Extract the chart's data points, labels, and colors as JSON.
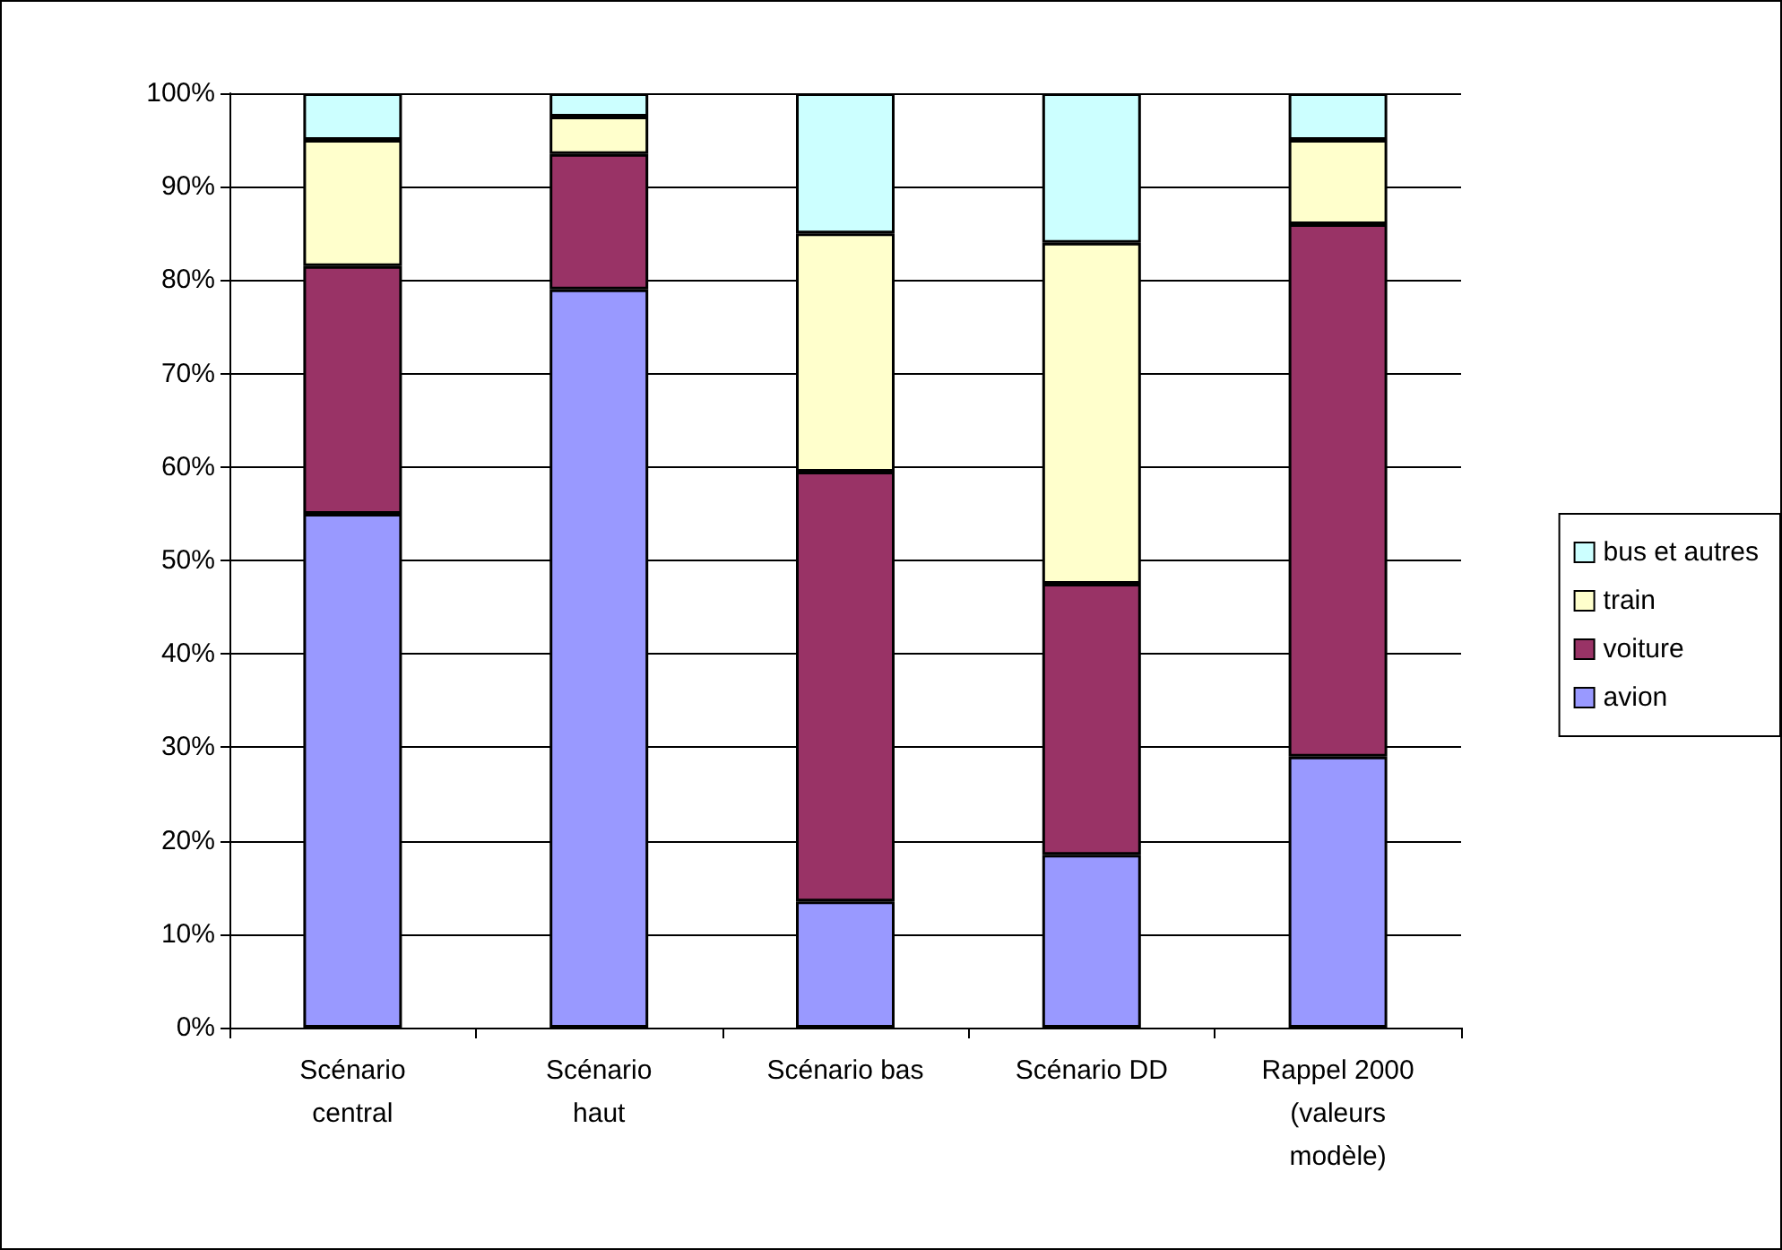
{
  "chart_data": {
    "type": "bar",
    "stacked": true,
    "categories": [
      "Scénario\ncentral",
      "Scénario\nhaut",
      "Scénario bas",
      "Scénario DD",
      "Rappel 2000\n(valeurs\nmodèle)"
    ],
    "series": [
      {
        "name": "avion",
        "color": "#9999ff",
        "values": [
          55,
          79,
          13.5,
          18.5,
          29
        ]
      },
      {
        "name": "voiture",
        "color": "#993366",
        "values": [
          26.5,
          14.5,
          46,
          29,
          57
        ]
      },
      {
        "name": "train",
        "color": "#ffffcc",
        "values": [
          13.5,
          4,
          25.5,
          36.5,
          9
        ]
      },
      {
        "name": "bus et autres",
        "color": "#ccffff",
        "values": [
          5,
          2.5,
          15,
          16,
          5
        ]
      }
    ],
    "ylim": [
      0,
      100
    ],
    "yticks": [
      {
        "value": 0,
        "label": "0%"
      },
      {
        "value": 10,
        "label": "10%"
      },
      {
        "value": 20,
        "label": "20%"
      },
      {
        "value": 30,
        "label": "30%"
      },
      {
        "value": 40,
        "label": "40%"
      },
      {
        "value": 50,
        "label": "50%"
      },
      {
        "value": 60,
        "label": "60%"
      },
      {
        "value": 70,
        "label": "70%"
      },
      {
        "value": 80,
        "label": "80%"
      },
      {
        "value": 90,
        "label": "90%"
      },
      {
        "value": 100,
        "label": "100%"
      }
    ],
    "grid": "y",
    "legend": "right"
  }
}
